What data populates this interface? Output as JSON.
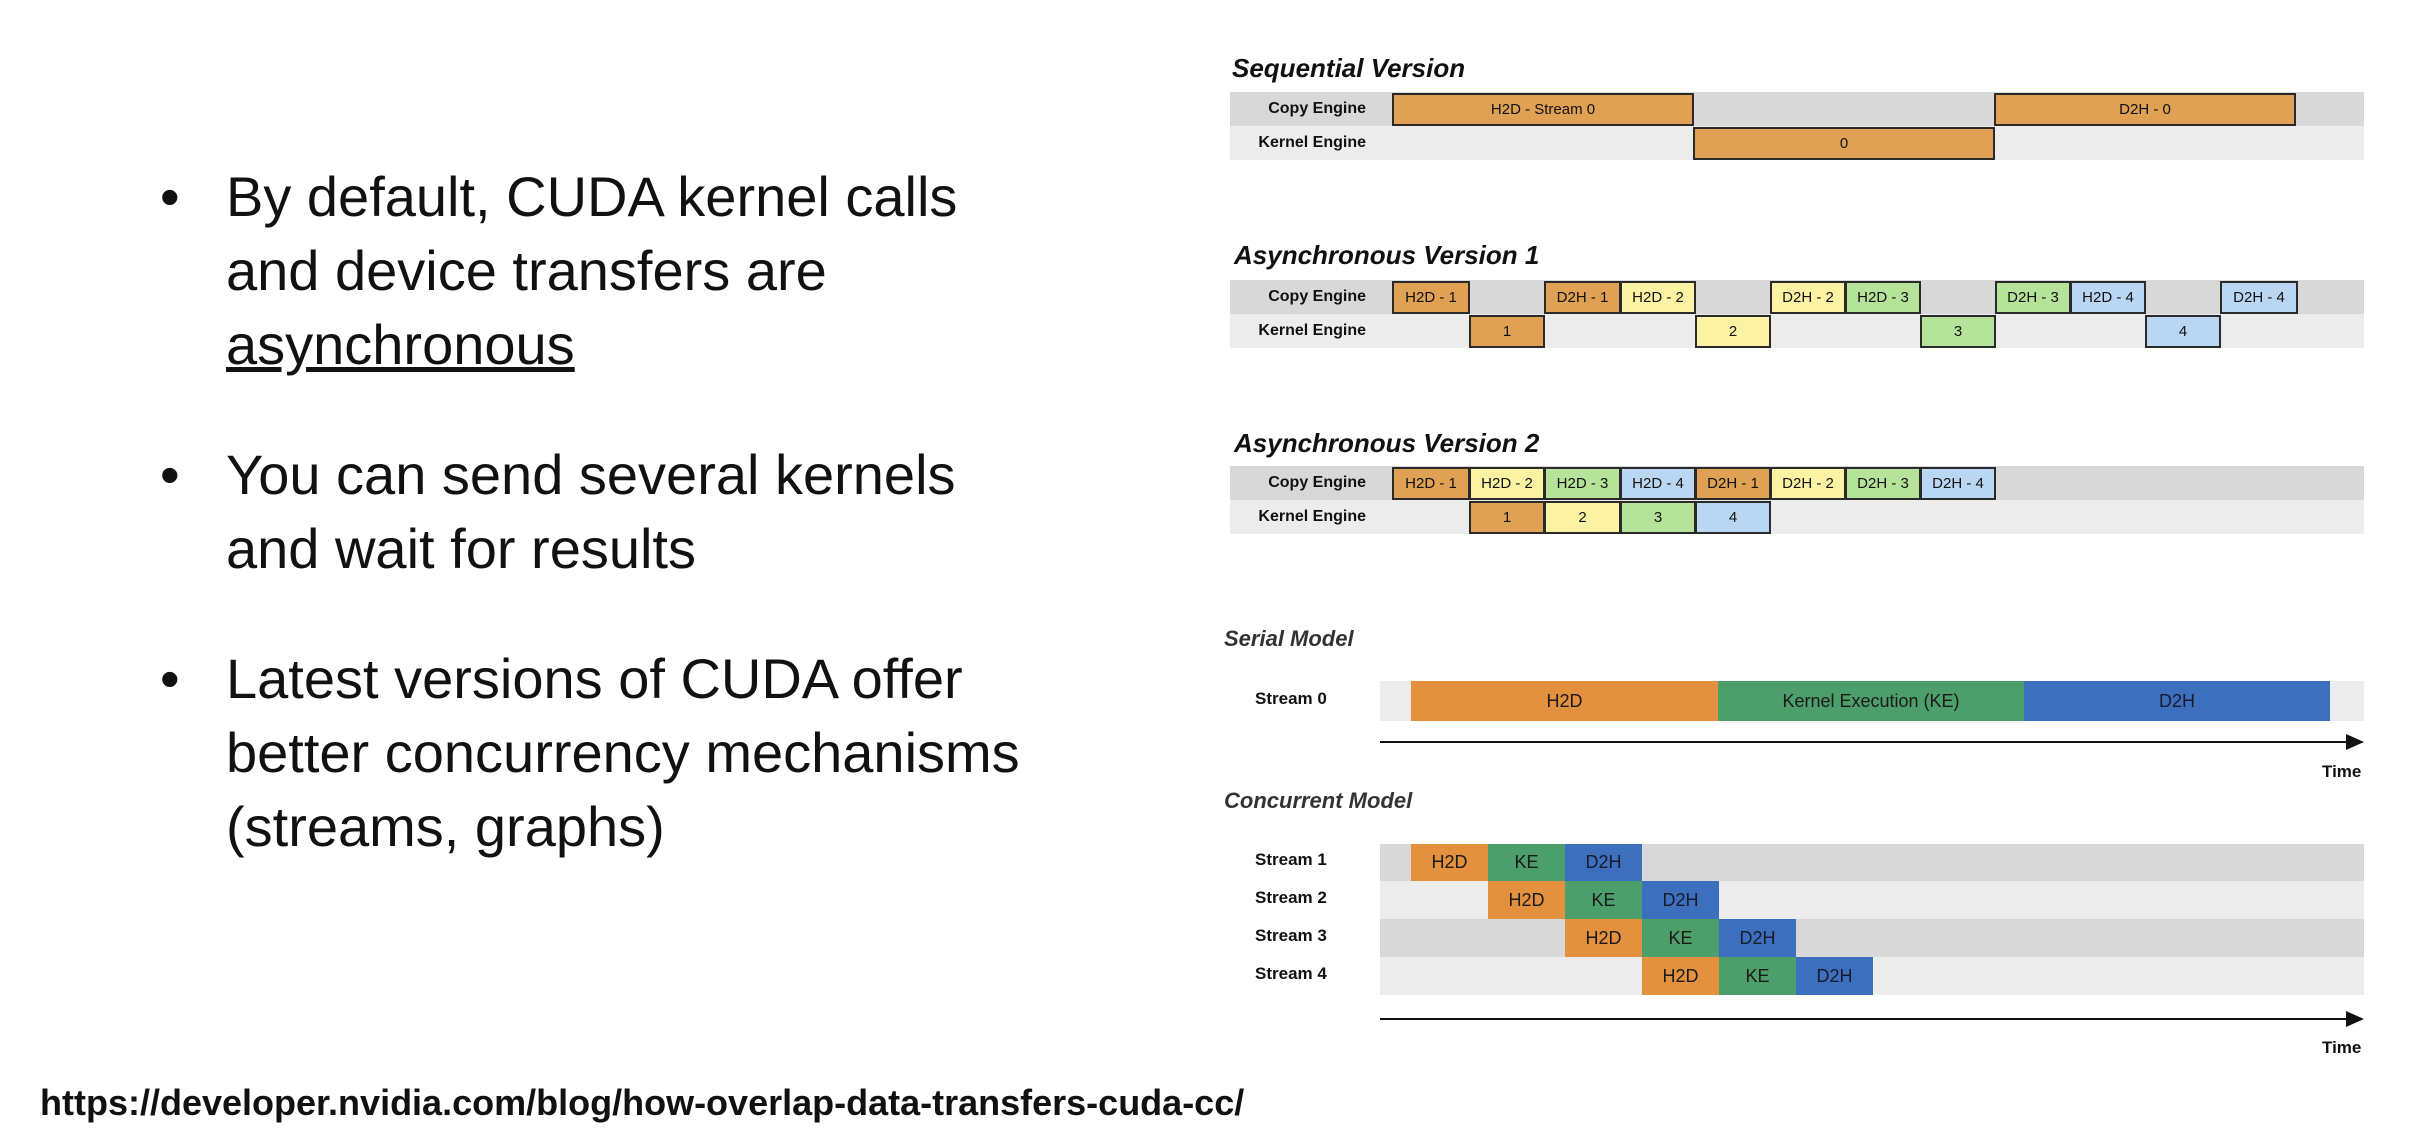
{
  "bullets": [
    {
      "line1": "By default, CUDA kernel calls",
      "line2": "and device transfers are",
      "line3": "asynchronous"
    },
    {
      "line1": "You can send several kernels",
      "line2": "and wait for results"
    },
    {
      "line1": "Latest versions of CUDA offer",
      "line2": "better concurrency mechanisms",
      "line3": "(streams, graphs)"
    }
  ],
  "footer_url": "https://developer.nvidia.com/blog/how-overlap-data-transfers-cuda-cc/",
  "diagram1": {
    "sequential_title": "Sequential Version",
    "async1_title": "Asynchronous Version 1",
    "async2_title": "Asynchronous Version 2",
    "copy_engine": "Copy Engine",
    "kernel_engine": "Kernel Engine",
    "seq_boxes": {
      "h2d": "H2D - Stream 0",
      "kernel": "0",
      "d2h": "D2H - 0"
    },
    "async1_boxes": {
      "h2d1": "H2D - 1",
      "d2h1": "D2H - 1",
      "h2d2": "H2D - 2",
      "d2h2": "D2H - 2",
      "h2d3": "H2D - 3",
      "d2h3": "D2H - 3",
      "h2d4": "H2D - 4",
      "d2h4": "D2H - 4",
      "k1": "1",
      "k2": "2",
      "k3": "3",
      "k4": "4"
    },
    "async2_boxes": {
      "h2d1": "H2D - 1",
      "h2d2": "H2D - 2",
      "h2d3": "H2D - 3",
      "h2d4": "H2D - 4",
      "d2h1": "D2H - 1",
      "d2h2": "D2H - 2",
      "d2h3": "D2H - 3",
      "d2h4": "D2H - 4",
      "k1": "1",
      "k2": "2",
      "k3": "3",
      "k4": "4"
    }
  },
  "diagram2": {
    "serial_title": "Serial Model",
    "concurrent_title": "Concurrent Model",
    "stream0": "Stream 0",
    "serial_blocks": {
      "h2d": "H2D",
      "ke": "Kernel Execution (KE)",
      "d2h": "D2H"
    },
    "time": "Time",
    "streams": [
      "Stream 1",
      "Stream 2",
      "Stream 3",
      "Stream 4"
    ],
    "blk": {
      "h2d": "H2D",
      "ke": "KE",
      "d2h": "D2H"
    }
  },
  "colors": {
    "orange": "#e0a155",
    "yellow": "#fbf3a3",
    "green": "#b6e39a",
    "blue": "#b9d6f2",
    "h2d": "#e3913e",
    "ke": "#4c9e6a",
    "d2h": "#3d6fbf"
  }
}
